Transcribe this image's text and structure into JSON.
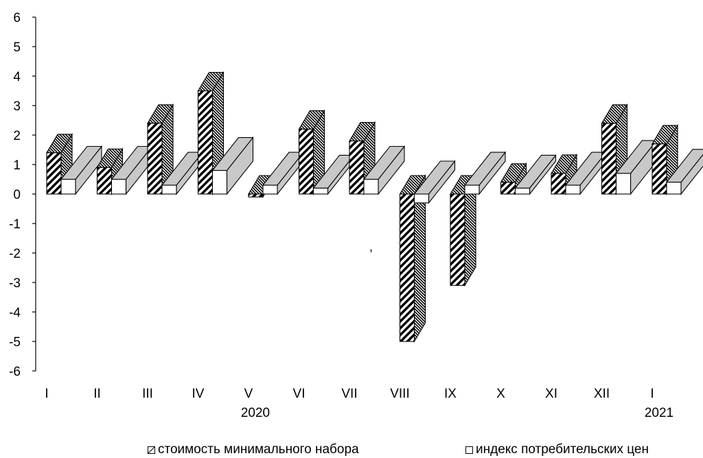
{
  "chart_data": {
    "type": "bar",
    "categories": [
      "I",
      "II",
      "III",
      "IV",
      "V",
      "VI",
      "VII",
      "VIII",
      "IX",
      "X",
      "XI",
      "XII",
      "I"
    ],
    "year_labels": [
      {
        "category_index": 4,
        "text": "2020"
      },
      {
        "category_index": 12,
        "text": "2021"
      }
    ],
    "series": [
      {
        "name": "стоимость минимального набора",
        "values": [
          1.4,
          0.9,
          2.4,
          3.5,
          -0.1,
          2.2,
          1.8,
          -5.0,
          -3.1,
          0.4,
          0.7,
          2.4,
          1.7
        ]
      },
      {
        "name": "индекс потребительских цен",
        "values": [
          0.5,
          0.5,
          0.3,
          0.8,
          0.3,
          0.2,
          0.5,
          -0.3,
          0.3,
          0.2,
          0.3,
          0.7,
          0.4
        ]
      }
    ],
    "yticks": [
      6,
      5,
      4,
      3,
      2,
      1,
      0,
      -1,
      -2,
      -3,
      -4,
      -5,
      -6
    ],
    "ylim": [
      -6,
      6
    ],
    "grid": false,
    "legend_position": "bottom",
    "stray_mark": ","
  },
  "colors": {
    "hatch": "#000000",
    "cpi_front": "#ffffff",
    "cpi_side": "#c8c8c8",
    "outline": "#000000"
  }
}
